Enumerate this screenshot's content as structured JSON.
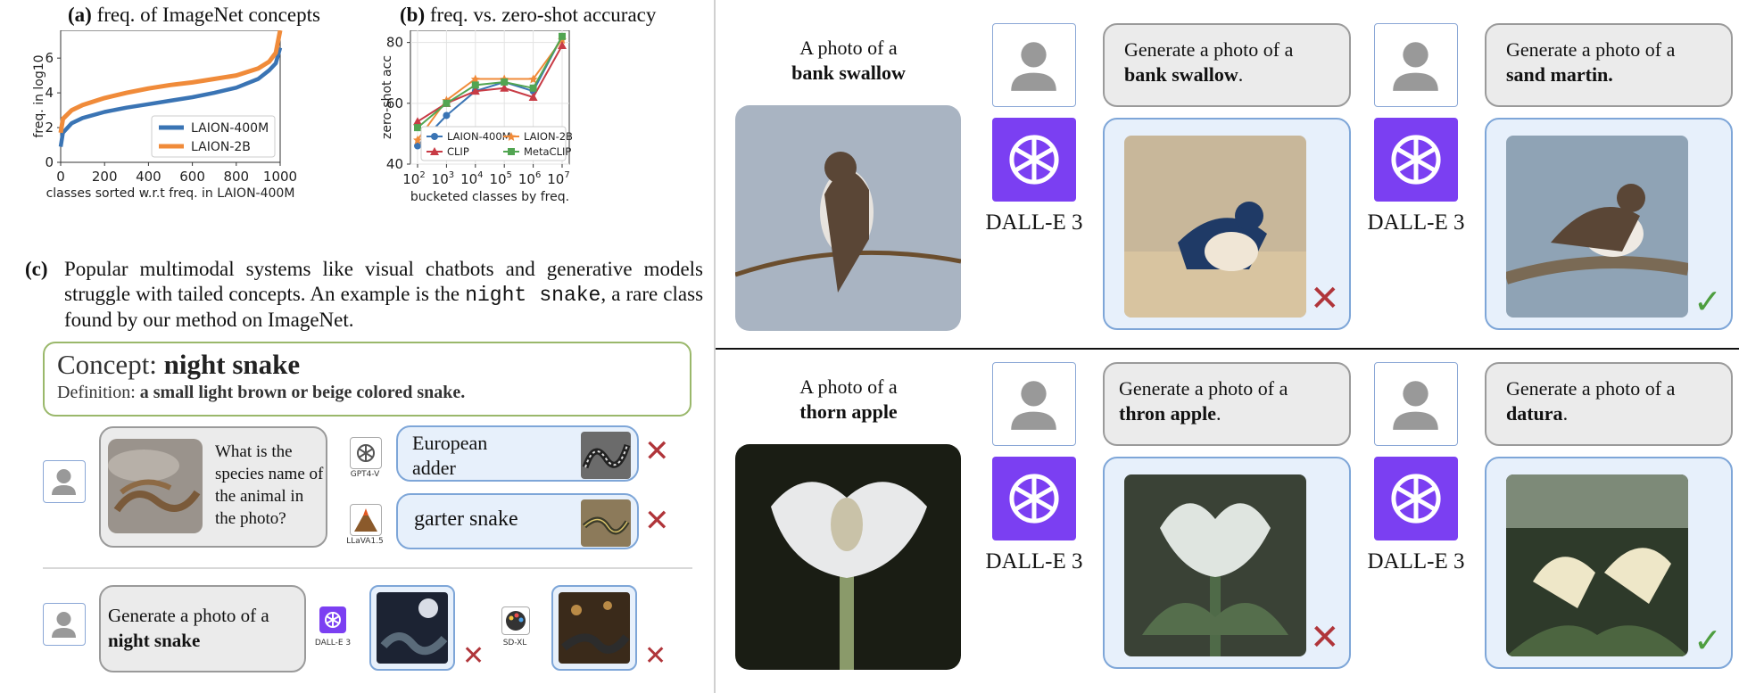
{
  "panel_a": {
    "title_label": "(a)",
    "title_text": "freq. of ImageNet concepts",
    "chart_data": {
      "type": "line",
      "xlabel": "classes sorted w.r.t freq. in LAION-400M",
      "ylabel": "freq. in log10",
      "xlim": [
        0,
        1000
      ],
      "ylim": [
        0,
        7.6
      ],
      "xticks": [
        0,
        200,
        400,
        600,
        800,
        1000
      ],
      "yticks": [
        0,
        2,
        4,
        6
      ],
      "legend_position": "bottom-right",
      "series": [
        {
          "name": "LAION-400M",
          "color": "#3a74b4",
          "x": [
            0,
            10,
            50,
            100,
            200,
            300,
            400,
            500,
            600,
            700,
            800,
            900,
            950,
            980,
            1000
          ],
          "y": [
            0.9,
            1.7,
            2.25,
            2.55,
            2.9,
            3.15,
            3.35,
            3.55,
            3.75,
            4.0,
            4.3,
            4.8,
            5.3,
            5.7,
            6.6
          ]
        },
        {
          "name": "LAION-2B",
          "color": "#f08b3a",
          "x": [
            0,
            10,
            50,
            100,
            200,
            300,
            400,
            500,
            600,
            700,
            800,
            900,
            950,
            980,
            1000
          ],
          "y": [
            1.7,
            2.5,
            3.0,
            3.3,
            3.7,
            4.0,
            4.25,
            4.45,
            4.6,
            4.8,
            5.0,
            5.4,
            5.8,
            6.3,
            7.6
          ]
        }
      ]
    }
  },
  "panel_b": {
    "title_label": "(b)",
    "title_text": "freq. vs. zero-shot accuracy",
    "chart_data": {
      "type": "line",
      "xlabel": "bucketed classes by freq.",
      "ylabel": "zero-shot acc",
      "ylim": [
        40,
        84
      ],
      "yticks": [
        40,
        60,
        80
      ],
      "xtick_base": "10",
      "xtick_exponents": [
        "2",
        "3",
        "4",
        "5",
        "6",
        "7"
      ],
      "x": [
        2,
        3,
        4,
        5,
        6,
        7
      ],
      "legend_position": "bottom-right",
      "series": [
        {
          "name": "LAION-400M",
          "color": "#3a74b4",
          "marker": "circle",
          "values": [
            46,
            56,
            64,
            67,
            64,
            82
          ]
        },
        {
          "name": "LAION-2B",
          "color": "#f08b3a",
          "marker": "star",
          "values": [
            48,
            61,
            68,
            68,
            68,
            81
          ]
        },
        {
          "name": "CLIP",
          "color": "#c83b45",
          "marker": "triangle",
          "values": [
            54,
            60,
            64,
            65,
            62,
            79
          ]
        },
        {
          "name": "MetaCLIP",
          "color": "#52a552",
          "marker": "square",
          "values": [
            52,
            60,
            66,
            67,
            65,
            82
          ]
        }
      ]
    }
  },
  "panel_c": {
    "label": "(c)",
    "caption_1": "Popular multimodal systems like visual chatbots and generative models struggle with tailed concepts. An example is the",
    "caption_code": "night snake",
    "caption_2": ", a rare class found by our method on ImageNet.",
    "concept_label": "Concept:",
    "concept_name": "night snake",
    "definition_label": "Definition:",
    "definition_text": "a small light brown or beige colored snake.",
    "question": "What is the species name of the animal in the photo?",
    "gpt_model": "GPT4-V",
    "gpt_answer": "European adder",
    "llava_model": "LLaVA1.5",
    "llava_answer": "garter snake",
    "gen_prefix": "Generate a photo of a",
    "gen_concept": "night snake",
    "dalle_model": "DALL-E 3",
    "sdxl_model": "SD-XL"
  },
  "right": {
    "photo_of": "A photo of a",
    "row1": {
      "true_name": "bank swallow",
      "prompt_prefix": "Generate a photo of a",
      "prompt_a": "bank swallow",
      "prompt_b": "sand martin"
    },
    "row2": {
      "true_name": "thorn apple",
      "prompt_prefix": "Generate a photo of a",
      "prompt_a": "thron apple",
      "prompt_b": "datura"
    },
    "model": "DALL-E 3",
    "period": "."
  },
  "colors": {
    "avatar_border": "#8aa7d6",
    "bubble_blue": "#e7f0fb",
    "bubble_gray": "#ebebeb",
    "openai_purple": "#7b3ff2",
    "wrong": "#b0353a",
    "right": "#4e9e3f",
    "concept_border": "#9ab86b"
  },
  "icons": {
    "user": "user-silhouette-icon",
    "openai": "openai-logo-icon",
    "wrong": "cross-mark-icon",
    "correct": "check-mark-icon"
  }
}
